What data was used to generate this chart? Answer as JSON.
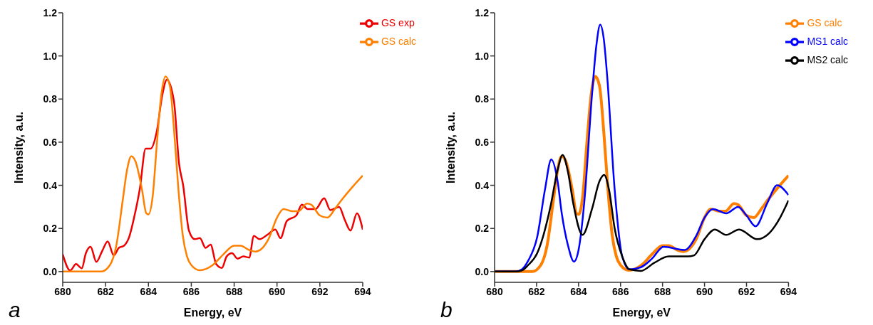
{
  "chart_data": [
    {
      "type": "line",
      "xlabel": "Energy, eV",
      "ylabel": "Intensity, a.u.",
      "annotations": [
        "a"
      ],
      "legend": "top right",
      "grid": false,
      "marker": "none",
      "line_style": "solid",
      "xlim": [
        680,
        694
      ],
      "xticks": [
        680,
        682,
        684,
        686,
        688,
        690,
        692,
        694
      ],
      "ylim": [
        -0.05,
        1.2
      ],
      "yticks": [
        {
          "value": 0,
          "label": "0.0"
        },
        {
          "value": 0.2,
          "label": "0.2"
        },
        {
          "value": 0.4,
          "label": "0.4"
        },
        {
          "value": 0.6,
          "label": "0.6"
        },
        {
          "value": 0.8,
          "label": "0.8"
        },
        {
          "value": 1,
          "label": "1.0"
        },
        {
          "value": 1.2,
          "label": "1.2"
        }
      ],
      "series": [
        {
          "name": "GS exp",
          "color": "#ee0000",
          "x": [
            680,
            680.35,
            680.62,
            680.89,
            681.08,
            681.3,
            681.57,
            681.84,
            682.1,
            682.38,
            682.62,
            682.86,
            683.1,
            683.33,
            683.6,
            683.87,
            684.1,
            684.38,
            684.65,
            684.86,
            685.19,
            685.43,
            685.62,
            685.89,
            686.16,
            686.4,
            686.67,
            686.9,
            687.16,
            687.43,
            687.65,
            687.9,
            688.16,
            688.43,
            688.7,
            688.92,
            689.19,
            689.54,
            689.92,
            690.16,
            690.46,
            690.9,
            691.16,
            691.43,
            691.8,
            692.2,
            692.49,
            692.9,
            693.16,
            693.43,
            693.73,
            694
          ],
          "values": [
            0.08,
            0.005,
            0.035,
            0.015,
            0.085,
            0.115,
            0.045,
            0.095,
            0.14,
            0.075,
            0.11,
            0.12,
            0.16,
            0.25,
            0.385,
            0.57,
            0.57,
            0.645,
            0.82,
            0.89,
            0.79,
            0.5,
            0.4,
            0.19,
            0.15,
            0.155,
            0.11,
            0.125,
            0.035,
            0.017,
            0.07,
            0.085,
            0.06,
            0.07,
            0.065,
            0.165,
            0.15,
            0.17,
            0.195,
            0.155,
            0.235,
            0.26,
            0.31,
            0.29,
            0.29,
            0.34,
            0.285,
            0.3,
            0.24,
            0.19,
            0.27,
            0.195
          ]
        },
        {
          "name": "GS calc",
          "color": "#ff8000",
          "x": [
            680,
            681,
            681.8,
            682.2,
            682.5,
            682.8,
            683,
            683.2,
            683.4,
            683.7,
            683.9,
            684,
            684.2,
            684.4,
            684.6,
            684.8,
            685,
            685.2,
            685.4,
            685.6,
            685.8,
            686,
            686.4,
            687,
            687.5,
            688,
            688.3,
            688.7,
            689,
            689.6,
            690,
            690.3,
            690.7,
            691,
            691.4,
            691.6,
            692,
            692.35,
            692.7,
            693,
            693.5,
            694
          ],
          "values": [
            0,
            0,
            0,
            0.03,
            0.12,
            0.33,
            0.47,
            0.535,
            0.51,
            0.38,
            0.27,
            0.265,
            0.35,
            0.6,
            0.82,
            0.905,
            0.86,
            0.65,
            0.38,
            0.17,
            0.07,
            0.03,
            0.006,
            0.03,
            0.08,
            0.12,
            0.12,
            0.1,
            0.093,
            0.15,
            0.25,
            0.29,
            0.28,
            0.28,
            0.315,
            0.31,
            0.26,
            0.25,
            0.29,
            0.33,
            0.39,
            0.445
          ]
        }
      ]
    },
    {
      "type": "line",
      "xlabel": "Energy, eV",
      "ylabel": "Intensity, a.u.",
      "annotations": [
        "b"
      ],
      "legend": "top right",
      "grid": false,
      "marker": "none",
      "line_style": "solid",
      "xlim": [
        680,
        694
      ],
      "xticks": [
        680,
        682,
        684,
        686,
        688,
        690,
        692,
        694
      ],
      "ylim": [
        -0.05,
        1.2
      ],
      "yticks": [
        {
          "value": 0,
          "label": "0.0"
        },
        {
          "value": 0.2,
          "label": "0.2"
        },
        {
          "value": 0.4,
          "label": "0.4"
        },
        {
          "value": 0.6,
          "label": "0.6"
        },
        {
          "value": 0.8,
          "label": "0.8"
        },
        {
          "value": 1,
          "label": "1.0"
        },
        {
          "value": 1.2,
          "label": "1.2"
        }
      ],
      "series": [
        {
          "name": "GS calc",
          "color": "#ff8000",
          "x": [
            680,
            681,
            681.8,
            682.2,
            682.5,
            682.8,
            683,
            683.2,
            683.4,
            683.7,
            683.9,
            684,
            684.2,
            684.4,
            684.6,
            684.8,
            685,
            685.2,
            685.4,
            685.6,
            685.8,
            686,
            686.4,
            687,
            687.5,
            688,
            688.3,
            688.7,
            689,
            689.6,
            690,
            690.3,
            690.7,
            691,
            691.4,
            691.6,
            692,
            692.35,
            692.7,
            693,
            693.5,
            694
          ],
          "values": [
            0,
            0,
            0,
            0.03,
            0.12,
            0.33,
            0.47,
            0.535,
            0.51,
            0.38,
            0.27,
            0.265,
            0.35,
            0.6,
            0.82,
            0.905,
            0.86,
            0.65,
            0.38,
            0.17,
            0.07,
            0.03,
            0.006,
            0.03,
            0.08,
            0.12,
            0.12,
            0.1,
            0.093,
            0.15,
            0.25,
            0.29,
            0.28,
            0.28,
            0.315,
            0.31,
            0.26,
            0.25,
            0.29,
            0.33,
            0.39,
            0.445
          ]
        },
        {
          "name": "MS1 calc",
          "color": "#0000ff",
          "x": [
            680,
            681,
            681.3,
            681.6,
            682.03,
            682.4,
            682.7,
            683,
            683.2,
            683.5,
            683.78,
            684,
            684.28,
            684.64,
            684.85,
            685.03,
            685.2,
            685.36,
            685.72,
            686.08,
            686.43,
            686.97,
            687.5,
            688.05,
            689.05,
            689.6,
            690,
            690.4,
            691.03,
            691.6,
            692,
            692.43,
            693,
            693.46,
            694
          ],
          "values": [
            0,
            0,
            0.01,
            0.05,
            0.16,
            0.38,
            0.52,
            0.42,
            0.27,
            0.12,
            0.046,
            0.1,
            0.33,
            0.82,
            1.05,
            1.145,
            1.08,
            0.91,
            0.38,
            0.07,
            0.01,
            0.02,
            0.06,
            0.115,
            0.1,
            0.165,
            0.25,
            0.29,
            0.27,
            0.3,
            0.26,
            0.21,
            0.32,
            0.4,
            0.355
          ]
        },
        {
          "name": "MS2 calc",
          "color": "#000000",
          "x": [
            680,
            681,
            681.3,
            681.6,
            682.03,
            682.66,
            683,
            683.24,
            683.5,
            683.74,
            684.19,
            684.64,
            685,
            685.22,
            685.45,
            685.72,
            686.08,
            686.43,
            686.97,
            687.6,
            688.3,
            689.2,
            689.5,
            690,
            690.49,
            691.03,
            691.65,
            692.5,
            693.1,
            693.6,
            694
          ],
          "values": [
            0,
            0,
            0.005,
            0.03,
            0.085,
            0.3,
            0.47,
            0.54,
            0.46,
            0.32,
            0.17,
            0.29,
            0.42,
            0.448,
            0.38,
            0.2,
            0.07,
            0.01,
            0.003,
            0.04,
            0.07,
            0.07,
            0.075,
            0.15,
            0.195,
            0.17,
            0.195,
            0.15,
            0.18,
            0.25,
            0.33
          ]
        }
      ]
    }
  ]
}
